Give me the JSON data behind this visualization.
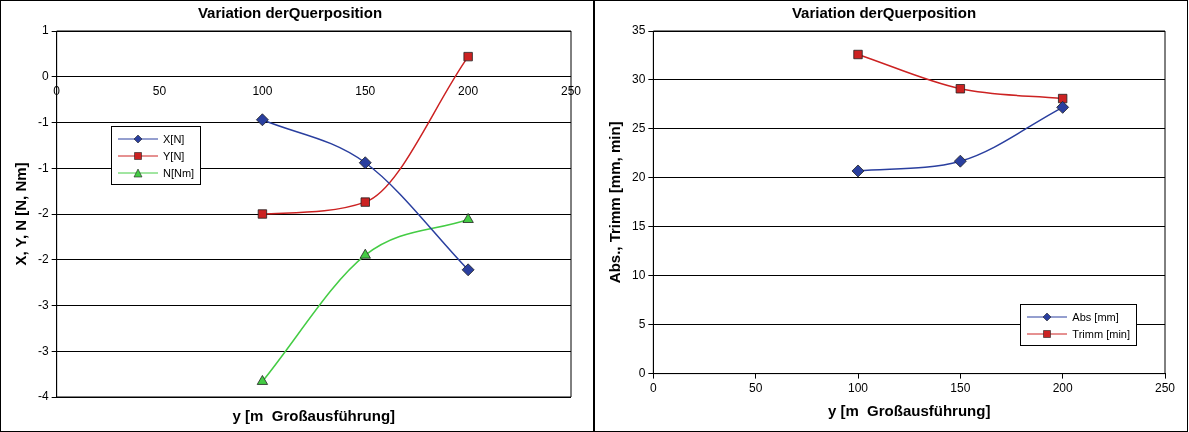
{
  "chart_data": [
    {
      "type": "line",
      "title": "Variation derQuerposition",
      "xlabel": "y [m  Großausführung]",
      "ylabel": "X, Y, N [N, Nm]",
      "x": [
        100,
        150,
        200
      ],
      "xlim": [
        0,
        250
      ],
      "xticks": [
        0,
        50,
        100,
        150,
        200,
        250
      ],
      "ylim": [
        -3.5,
        0.5
      ],
      "yticks": [
        {
          "value": 0.5,
          "label": "1"
        },
        0,
        {
          "value": -0.5,
          "label": "-1"
        },
        -1,
        {
          "value": -1.5,
          "label": "-2"
        },
        -2,
        {
          "value": -2.5,
          "label": "-3"
        },
        -3,
        {
          "value": -3.5,
          "label": "-4"
        }
      ],
      "grid": "y",
      "legend": "top left",
      "series": [
        {
          "name": "X[N]",
          "color": "#2a3f9f",
          "marker": "diamond",
          "values": [
            -0.47,
            -0.94,
            -2.11
          ]
        },
        {
          "name": "Y[N]",
          "color": "#cc2222",
          "marker": "square",
          "values": [
            -1.5,
            -1.37,
            0.22
          ]
        },
        {
          "name": "N[Nm]",
          "color": "#44cc44",
          "marker": "triangle",
          "values": [
            -3.33,
            -1.95,
            -1.56
          ]
        }
      ]
    },
    {
      "type": "line",
      "title": "Variation derQuerposition",
      "xlabel": "y [m  Großausführung]",
      "ylabel": "Abs., Trimm [mm, min]",
      "x": [
        100,
        150,
        200
      ],
      "xlim": [
        0,
        250
      ],
      "xticks": [
        0,
        50,
        100,
        150,
        200,
        250
      ],
      "ylim": [
        0,
        35
      ],
      "yticks": [
        0,
        5,
        10,
        15,
        20,
        25,
        30,
        35
      ],
      "grid": "y",
      "legend": "bottom right",
      "series": [
        {
          "name": "Abs [mm]",
          "color": "#2a3f9f",
          "marker": "diamond",
          "values": [
            20.7,
            21.7,
            27.2
          ]
        },
        {
          "name": "Trimm [min]",
          "color": "#cc2222",
          "marker": "square",
          "values": [
            32.6,
            29.1,
            28.1
          ]
        }
      ]
    }
  ]
}
